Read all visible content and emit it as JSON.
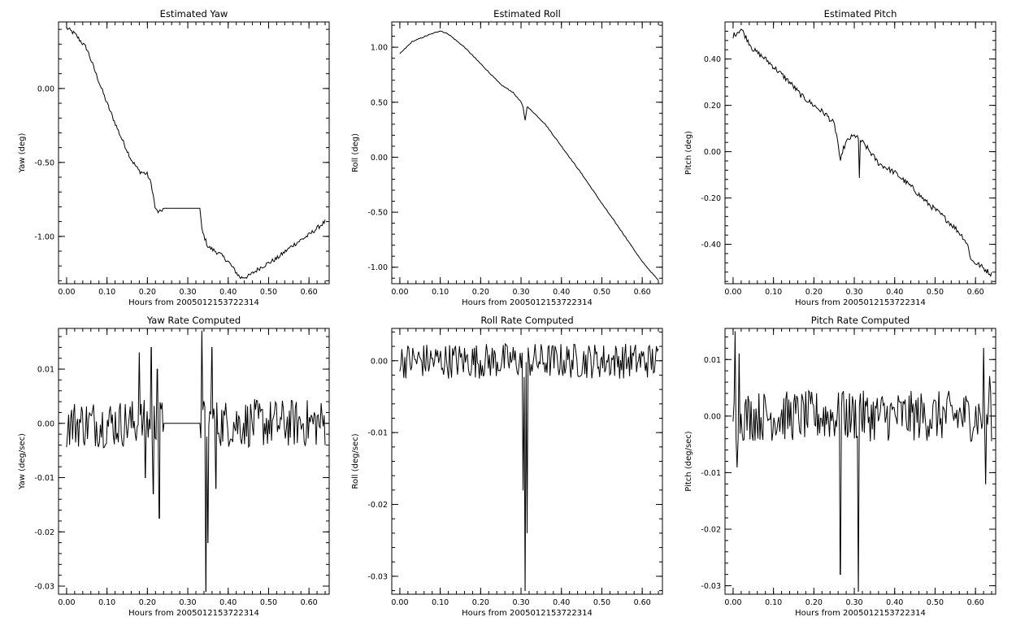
{
  "chart_data": [
    {
      "type": "line",
      "title": "Estimated Yaw",
      "xlabel": "Hours from 2005012153722314",
      "ylabel": "Yaw (deg)",
      "xlim": [
        -0.02,
        0.65
      ],
      "ylim": [
        -1.32,
        0.45
      ],
      "x_ticks": [
        "0.00",
        "0.10",
        "0.20",
        "0.30",
        "0.40",
        "0.50",
        "0.60"
      ],
      "y_ticks": [
        "0.00",
        "-0.50",
        "-1.00"
      ],
      "y_tick_values": [
        0,
        -0.5,
        -1.0
      ],
      "anchors": [
        [
          0.0,
          0.41
        ],
        [
          0.02,
          0.37
        ],
        [
          0.05,
          0.27
        ],
        [
          0.07,
          0.12
        ],
        [
          0.1,
          -0.1
        ],
        [
          0.13,
          -0.3
        ],
        [
          0.16,
          -0.48
        ],
        [
          0.18,
          -0.56
        ],
        [
          0.2,
          -0.58
        ],
        [
          0.21,
          -0.65
        ],
        [
          0.22,
          -0.82
        ],
        [
          0.23,
          -0.84
        ],
        [
          0.24,
          -0.81
        ],
        [
          0.33,
          -0.81
        ],
        [
          0.335,
          -0.96
        ],
        [
          0.35,
          -1.07
        ],
        [
          0.38,
          -1.12
        ],
        [
          0.4,
          -1.17
        ],
        [
          0.43,
          -1.28
        ],
        [
          0.45,
          -1.27
        ],
        [
          0.48,
          -1.21
        ],
        [
          0.52,
          -1.15
        ],
        [
          0.56,
          -1.06
        ],
        [
          0.6,
          -0.99
        ],
        [
          0.64,
          -0.9
        ]
      ],
      "noise": 0.015,
      "flat_range": [
        0.24,
        0.33
      ]
    },
    {
      "type": "line",
      "title": "Estimated Roll",
      "xlabel": "Hours from 2005012153722314",
      "ylabel": "Roll (deg)",
      "xlim": [
        -0.02,
        0.65
      ],
      "ylim": [
        -1.15,
        1.23
      ],
      "x_ticks": [
        "0.00",
        "0.10",
        "0.20",
        "0.30",
        "0.40",
        "0.50",
        "0.60"
      ],
      "y_ticks": [
        "1.00",
        "0.50",
        "0.00",
        "-0.50",
        "-1.00"
      ],
      "y_tick_values": [
        1.0,
        0.5,
        0.0,
        -0.5,
        -1.0
      ],
      "anchors": [
        [
          0.0,
          0.94
        ],
        [
          0.03,
          1.05
        ],
        [
          0.07,
          1.11
        ],
        [
          0.1,
          1.15
        ],
        [
          0.12,
          1.12
        ],
        [
          0.16,
          1.0
        ],
        [
          0.2,
          0.85
        ],
        [
          0.25,
          0.66
        ],
        [
          0.28,
          0.59
        ],
        [
          0.3,
          0.5
        ],
        [
          0.305,
          0.46
        ],
        [
          0.31,
          0.33
        ],
        [
          0.315,
          0.46
        ],
        [
          0.33,
          0.41
        ],
        [
          0.36,
          0.3
        ],
        [
          0.4,
          0.1
        ],
        [
          0.45,
          -0.15
        ],
        [
          0.5,
          -0.42
        ],
        [
          0.55,
          -0.68
        ],
        [
          0.6,
          -0.95
        ],
        [
          0.64,
          -1.12
        ]
      ],
      "noise": 0.004,
      "flat_range": []
    },
    {
      "type": "line",
      "title": "Estimated Pitch",
      "xlabel": "Hours from 2005012153722314",
      "ylabel": "Pitch (deg)",
      "xlim": [
        -0.02,
        0.65
      ],
      "ylim": [
        -0.57,
        0.56
      ],
      "x_ticks": [
        "0.00",
        "0.10",
        "0.20",
        "0.30",
        "0.40",
        "0.50",
        "0.60"
      ],
      "y_ticks": [
        "0.40",
        "0.20",
        "0.00",
        "-0.20",
        "-0.40"
      ],
      "y_tick_values": [
        0.4,
        0.2,
        0.0,
        -0.2,
        -0.4
      ],
      "anchors": [
        [
          0.0,
          0.5
        ],
        [
          0.02,
          0.53
        ],
        [
          0.05,
          0.44
        ],
        [
          0.08,
          0.4
        ],
        [
          0.11,
          0.35
        ],
        [
          0.14,
          0.3
        ],
        [
          0.17,
          0.24
        ],
        [
          0.2,
          0.2
        ],
        [
          0.23,
          0.16
        ],
        [
          0.25,
          0.12
        ],
        [
          0.26,
          0.04
        ],
        [
          0.265,
          -0.06
        ],
        [
          0.27,
          0.0
        ],
        [
          0.28,
          0.04
        ],
        [
          0.29,
          0.06
        ],
        [
          0.305,
          0.07
        ],
        [
          0.31,
          0.06
        ],
        [
          0.312,
          -0.16
        ],
        [
          0.315,
          0.05
        ],
        [
          0.33,
          0.02
        ],
        [
          0.36,
          -0.05
        ],
        [
          0.4,
          -0.09
        ],
        [
          0.44,
          -0.15
        ],
        [
          0.48,
          -0.22
        ],
        [
          0.52,
          -0.28
        ],
        [
          0.55,
          -0.33
        ],
        [
          0.57,
          -0.37
        ],
        [
          0.58,
          -0.4
        ],
        [
          0.59,
          -0.47
        ],
        [
          0.61,
          -0.49
        ],
        [
          0.64,
          -0.53
        ]
      ],
      "noise": 0.012,
      "flat_range": []
    },
    {
      "type": "line",
      "title": "Yaw Rate Computed",
      "xlabel": "Hours from 2005012153722314",
      "ylabel": "Yaw (deg/sec)",
      "xlim": [
        -0.02,
        0.65
      ],
      "ylim": [
        -0.0315,
        0.0175
      ],
      "x_ticks": [
        "0.00",
        "0.10",
        "0.20",
        "0.30",
        "0.40",
        "0.50",
        "0.60"
      ],
      "y_ticks": [
        "0.01",
        "0.00",
        "-0.01",
        "-0.02",
        "-0.03"
      ],
      "y_tick_values": [
        0.01,
        0.0,
        -0.01,
        -0.02,
        -0.03
      ],
      "noise": 0.0045,
      "flat_range": [
        0.24,
        0.33
      ],
      "spikes": [
        [
          0.18,
          0.013
        ],
        [
          0.195,
          -0.01
        ],
        [
          0.21,
          0.014
        ],
        [
          0.215,
          -0.013
        ],
        [
          0.225,
          0.01
        ],
        [
          0.23,
          -0.0175
        ],
        [
          0.335,
          0.017
        ],
        [
          0.345,
          -0.031
        ],
        [
          0.35,
          -0.022
        ],
        [
          0.36,
          0.014
        ],
        [
          0.37,
          -0.012
        ]
      ]
    },
    {
      "type": "line",
      "title": "Roll Rate Computed",
      "xlabel": "Hours from 2005012153722314",
      "ylabel": "Roll (deg/sec)",
      "xlim": [
        -0.02,
        0.65
      ],
      "ylim": [
        -0.0325,
        0.0045
      ],
      "x_ticks": [
        "0.00",
        "0.10",
        "0.20",
        "0.30",
        "0.40",
        "0.50",
        "0.60"
      ],
      "y_ticks": [
        "0.00",
        "-0.01",
        "-0.02",
        "-0.03"
      ],
      "y_tick_values": [
        0.0,
        -0.01,
        -0.02,
        -0.03
      ],
      "noise": 0.0025,
      "flat_range": [],
      "spikes": [
        [
          0.305,
          -0.018
        ],
        [
          0.31,
          -0.032
        ],
        [
          0.315,
          -0.024
        ]
      ]
    },
    {
      "type": "line",
      "title": "Pitch Rate Computed",
      "xlabel": "Hours from 2005012153722314",
      "ylabel": "Pitch (deg/sec)",
      "xlim": [
        -0.02,
        0.65
      ],
      "ylim": [
        -0.0315,
        0.0155
      ],
      "x_ticks": [
        "0.00",
        "0.10",
        "0.20",
        "0.30",
        "0.40",
        "0.50",
        "0.60"
      ],
      "y_ticks": [
        "0.01",
        "0.00",
        "-0.01",
        "-0.02",
        "-0.03"
      ],
      "y_tick_values": [
        0.01,
        0.0,
        -0.01,
        -0.02,
        -0.03
      ],
      "noise": 0.0045,
      "flat_range": [],
      "spikes": [
        [
          0.005,
          0.015
        ],
        [
          0.01,
          -0.009
        ],
        [
          0.015,
          0.011
        ],
        [
          0.265,
          -0.028
        ],
        [
          0.27,
          0.004
        ],
        [
          0.31,
          -0.031
        ],
        [
          0.315,
          0.004
        ],
        [
          0.62,
          0.012
        ],
        [
          0.625,
          -0.012
        ],
        [
          0.635,
          0.007
        ]
      ]
    }
  ]
}
